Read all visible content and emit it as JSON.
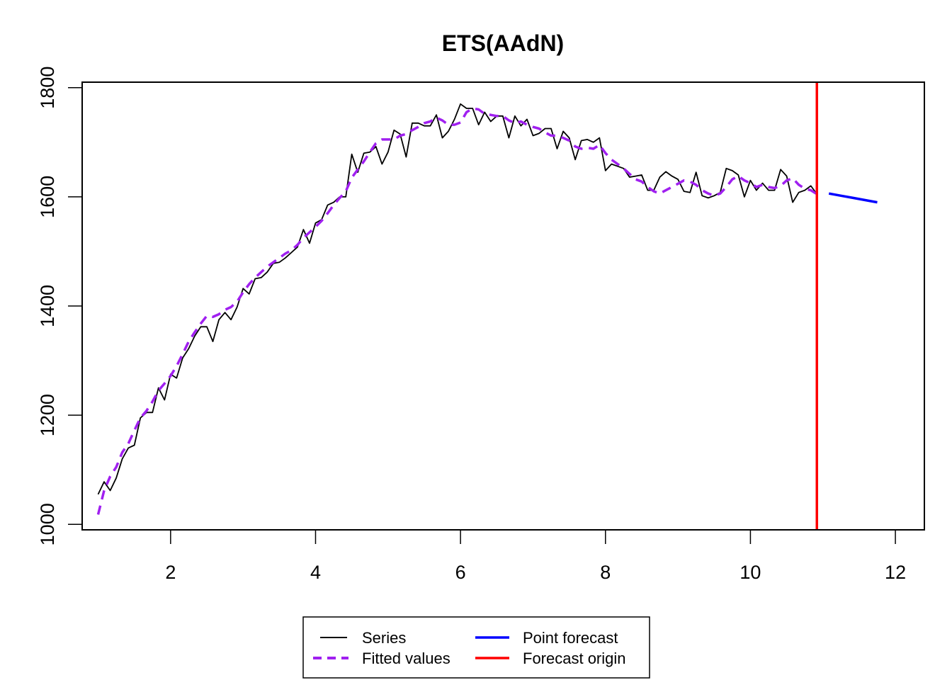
{
  "chart_data": {
    "type": "line",
    "title": "ETS(AAdN)",
    "xlabel": "",
    "ylabel": "",
    "xlim": [
      0.78,
      12.4
    ],
    "ylim": [
      990,
      1810
    ],
    "x_ticks": [
      2,
      4,
      6,
      8,
      10,
      12
    ],
    "x_tick_labels": [
      "2",
      "4",
      "6",
      "8",
      "10",
      "12"
    ],
    "y_ticks": [
      1000,
      1200,
      1400,
      1600,
      1800
    ],
    "y_tick_labels": [
      "1000",
      "1200",
      "1400",
      "1600",
      "1800"
    ],
    "grid": false,
    "legend_position": "bottom-center",
    "series": [
      {
        "name": "Series",
        "color": "#000000",
        "style": "solid",
        "x": [
          1.0,
          1.083,
          1.167,
          1.25,
          1.333,
          1.417,
          1.5,
          1.583,
          1.667,
          1.75,
          1.833,
          1.917,
          2.0,
          2.083,
          2.167,
          2.25,
          2.333,
          2.417,
          2.5,
          2.583,
          2.667,
          2.75,
          2.833,
          2.917,
          3.0,
          3.083,
          3.167,
          3.25,
          3.333,
          3.417,
          3.5,
          3.583,
          3.667,
          3.75,
          3.833,
          3.917,
          4.0,
          4.083,
          4.167,
          4.25,
          4.333,
          4.417,
          4.5,
          4.583,
          4.667,
          4.75,
          4.833,
          4.917,
          5.0,
          5.083,
          5.167,
          5.25,
          5.333,
          5.417,
          5.5,
          5.583,
          5.667,
          5.75,
          5.833,
          5.917,
          6.0,
          6.083,
          6.167,
          6.25,
          6.333,
          6.417,
          6.5,
          6.583,
          6.667,
          6.75,
          6.833,
          6.917,
          7.0,
          7.083,
          7.167,
          7.25,
          7.333,
          7.417,
          7.5,
          7.583,
          7.667,
          7.75,
          7.833,
          7.917,
          8.0,
          8.083,
          8.167,
          8.25,
          8.333,
          8.417,
          8.5,
          8.583,
          8.667,
          8.75,
          8.833,
          8.917,
          9.0,
          9.083,
          9.167,
          9.25,
          9.333,
          9.417,
          9.5,
          9.583,
          9.667,
          9.75,
          9.833,
          9.917,
          10.0,
          10.083,
          10.167,
          10.25,
          10.333,
          10.417,
          10.5,
          10.583,
          10.667,
          10.75,
          10.833,
          10.917
        ],
        "values": [
          1055,
          1078,
          1062,
          1085,
          1120,
          1140,
          1145,
          1195,
          1205,
          1205,
          1250,
          1228,
          1275,
          1268,
          1305,
          1322,
          1345,
          1362,
          1362,
          1335,
          1375,
          1388,
          1375,
          1398,
          1432,
          1422,
          1450,
          1452,
          1462,
          1478,
          1480,
          1488,
          1498,
          1508,
          1540,
          1515,
          1552,
          1558,
          1585,
          1590,
          1600,
          1600,
          1678,
          1645,
          1680,
          1682,
          1692,
          1660,
          1682,
          1722,
          1715,
          1673,
          1735,
          1735,
          1730,
          1730,
          1750,
          1708,
          1720,
          1742,
          1770,
          1762,
          1762,
          1732,
          1755,
          1738,
          1748,
          1748,
          1708,
          1748,
          1730,
          1742,
          1712,
          1716,
          1725,
          1725,
          1688,
          1720,
          1708,
          1668,
          1703,
          1705,
          1700,
          1708,
          1648,
          1660,
          1656,
          1652,
          1636,
          1638,
          1640,
          1612,
          1612,
          1636,
          1646,
          1638,
          1632,
          1610,
          1608,
          1645,
          1602,
          1598,
          1602,
          1608,
          1652,
          1648,
          1640,
          1600,
          1630,
          1612,
          1625,
          1612,
          1612,
          1650,
          1638,
          1590,
          1608,
          1612,
          1620,
          1605
        ]
      },
      {
        "name": "Fitted values",
        "color": "#a020f0",
        "style": "dashed",
        "x": [
          1.0,
          1.083,
          1.167,
          1.25,
          1.333,
          1.417,
          1.5,
          1.583,
          1.667,
          1.75,
          1.833,
          1.917,
          2.0,
          2.083,
          2.167,
          2.25,
          2.333,
          2.417,
          2.5,
          2.583,
          2.667,
          2.75,
          2.833,
          2.917,
          3.0,
          3.083,
          3.167,
          3.25,
          3.333,
          3.417,
          3.5,
          3.583,
          3.667,
          3.75,
          3.833,
          3.917,
          4.0,
          4.083,
          4.167,
          4.25,
          4.333,
          4.417,
          4.5,
          4.583,
          4.667,
          4.75,
          4.833,
          4.917,
          5.0,
          5.083,
          5.167,
          5.25,
          5.333,
          5.417,
          5.5,
          5.583,
          5.667,
          5.75,
          5.833,
          5.917,
          6.0,
          6.083,
          6.167,
          6.25,
          6.333,
          6.417,
          6.5,
          6.583,
          6.667,
          6.75,
          6.833,
          6.917,
          7.0,
          7.083,
          7.167,
          7.25,
          7.333,
          7.417,
          7.5,
          7.583,
          7.667,
          7.75,
          7.833,
          7.917,
          8.0,
          8.083,
          8.167,
          8.25,
          8.333,
          8.417,
          8.5,
          8.583,
          8.667,
          8.75,
          8.833,
          8.917,
          9.0,
          9.083,
          9.167,
          9.25,
          9.333,
          9.417,
          9.5,
          9.583,
          9.667,
          9.75,
          9.833,
          9.917,
          10.0,
          10.083,
          10.167,
          10.25,
          10.333,
          10.417,
          10.5,
          10.583,
          10.667,
          10.75,
          10.833,
          10.917
        ],
        "values": [
          1018,
          1062,
          1088,
          1105,
          1132,
          1148,
          1172,
          1195,
          1208,
          1225,
          1245,
          1258,
          1272,
          1290,
          1312,
          1335,
          1352,
          1368,
          1382,
          1380,
          1385,
          1393,
          1398,
          1408,
          1425,
          1440,
          1452,
          1462,
          1472,
          1480,
          1488,
          1496,
          1502,
          1512,
          1525,
          1535,
          1545,
          1556,
          1570,
          1585,
          1598,
          1610,
          1635,
          1650,
          1665,
          1682,
          1698,
          1705,
          1705,
          1705,
          1712,
          1715,
          1722,
          1728,
          1735,
          1738,
          1745,
          1740,
          1732,
          1732,
          1736,
          1755,
          1762,
          1760,
          1752,
          1750,
          1748,
          1748,
          1740,
          1735,
          1738,
          1732,
          1728,
          1725,
          1718,
          1712,
          1712,
          1708,
          1703,
          1692,
          1688,
          1690,
          1688,
          1695,
          1680,
          1668,
          1660,
          1652,
          1642,
          1632,
          1628,
          1618,
          1610,
          1606,
          1612,
          1618,
          1624,
          1630,
          1628,
          1622,
          1612,
          1606,
          1602,
          1606,
          1618,
          1632,
          1638,
          1630,
          1625,
          1618,
          1622,
          1618,
          1616,
          1620,
          1630,
          1634,
          1622,
          1615,
          1612,
          1605
        ]
      },
      {
        "name": "Point forecast",
        "color": "#0000ff",
        "style": "solid",
        "x": [
          11.083,
          11.25,
          11.417,
          11.583,
          11.75
        ],
        "values": [
          1606,
          1602,
          1598,
          1594,
          1590
        ]
      }
    ],
    "forecast_origin": {
      "name": "Forecast origin",
      "color": "#ff0000",
      "x": 10.917
    }
  },
  "legend": [
    {
      "label": "Series",
      "color": "#000000",
      "style": "solid"
    },
    {
      "label": "Fitted values",
      "color": "#a020f0",
      "style": "dashed"
    },
    {
      "label": "Point forecast",
      "color": "#0000ff",
      "style": "solid"
    },
    {
      "label": "Forecast origin",
      "color": "#ff0000",
      "style": "solid"
    }
  ]
}
